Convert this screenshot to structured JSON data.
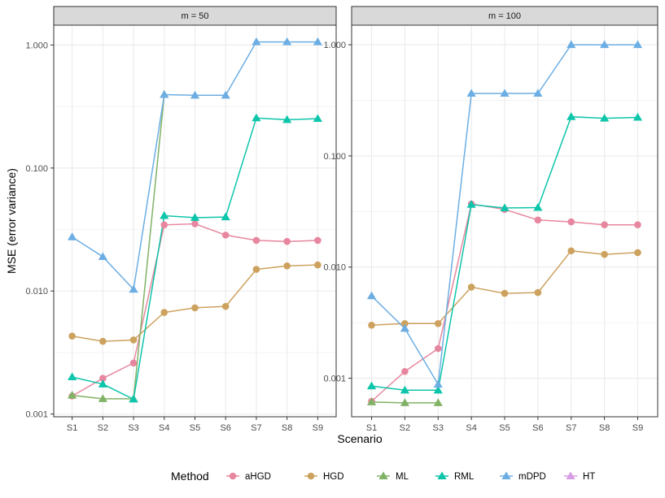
{
  "chart_data": {
    "type": "line",
    "ylabel": "MSE (error variance)",
    "xlabel": "Scenario",
    "yscale": "log10",
    "categories": [
      "S1",
      "S2",
      "S3",
      "S4",
      "S5",
      "S6",
      "S7",
      "S8",
      "S9"
    ],
    "grid": true,
    "legend": {
      "title": "Method",
      "placement": "bottom",
      "entries": [
        {
          "name": "aHGD",
          "color": "#E7879F",
          "shape": "circle"
        },
        {
          "name": "HGD",
          "color": "#CDA25F",
          "shape": "circle"
        },
        {
          "name": "ML",
          "color": "#80B266",
          "shape": "triangle"
        },
        {
          "name": "RML",
          "color": "#0DC5AA",
          "shape": "triangle"
        },
        {
          "name": "mDPD",
          "color": "#6CAEE3",
          "shape": "triangle"
        },
        {
          "name": "HT",
          "color": "#D79CE4",
          "shape": "triangle"
        }
      ]
    },
    "panels": [
      {
        "title": "m = 50",
        "ylim": [
          0.00095,
          1.45
        ],
        "yticks": [
          0.001,
          0.01,
          0.1,
          1
        ],
        "ytick_labels": [
          "0.001",
          "0.010",
          "0.100",
          "1.000"
        ],
        "series": [
          {
            "name": "aHGD",
            "values": [
              0.0014,
              0.00195,
              0.0026,
              0.0345,
              0.0352,
              0.0285,
              0.0258,
              0.0253,
              0.0258
            ]
          },
          {
            "name": "HGD",
            "values": [
              0.0043,
              0.0039,
              0.004,
              0.0067,
              0.0073,
              0.0075,
              0.015,
              0.016,
              0.0163
            ]
          },
          {
            "name": "ML",
            "values": [
              0.00142,
              0.00133,
              0.00133,
              0.395,
              null,
              null,
              null,
              null,
              null
            ]
          },
          {
            "name": "RML",
            "values": [
              0.002,
              0.00175,
              0.00132,
              0.041,
              0.0395,
              0.04,
              0.255,
              0.247,
              0.252
            ]
          },
          {
            "name": "mDPD",
            "values": [
              0.0275,
              0.019,
              0.0103,
              0.395,
              0.39,
              0.39,
              1.06,
              1.06,
              1.06
            ]
          }
        ]
      },
      {
        "title": "m = 100",
        "ylim": [
          0.00045,
          1.5
        ],
        "yticks": [
          0.001,
          0.01,
          0.1,
          1
        ],
        "ytick_labels": [
          "0.001",
          "0.010",
          "0.100",
          "1.000"
        ],
        "series": [
          {
            "name": "aHGD",
            "values": [
              0.00062,
              0.00115,
              0.00185,
              0.037,
              0.033,
              0.0265,
              0.0255,
              0.024,
              0.024
            ]
          },
          {
            "name": "HGD",
            "values": [
              0.003,
              0.0031,
              0.0031,
              0.0066,
              0.0058,
              0.0059,
              0.014,
              0.013,
              0.0135
            ]
          },
          {
            "name": "ML",
            "values": [
              0.00061,
              0.0006,
              0.0006,
              null,
              null,
              null,
              null,
              null,
              null
            ]
          },
          {
            "name": "RML",
            "values": [
              0.00085,
              0.00078,
              0.00078,
              0.0365,
              0.034,
              0.0343,
              0.225,
              0.218,
              0.222
            ]
          },
          {
            "name": "mDPD",
            "values": [
              0.0055,
              0.0028,
              0.00088,
              0.365,
              0.365,
              0.365,
              1.0,
              1.0,
              1.0
            ]
          }
        ]
      }
    ]
  }
}
